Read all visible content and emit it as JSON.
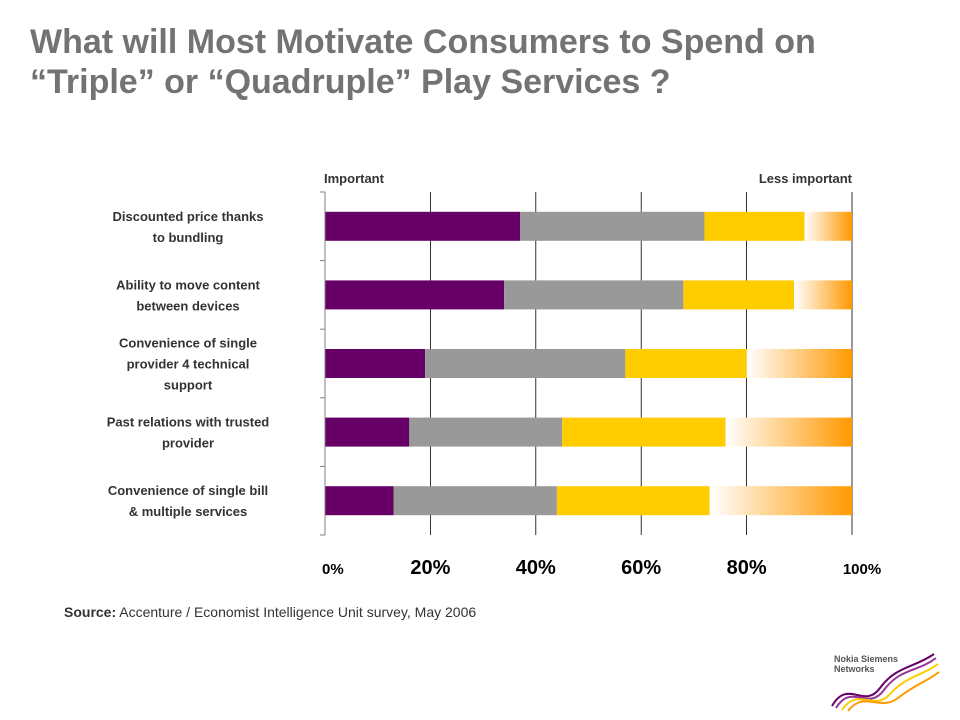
{
  "title": {
    "line1": "What will Most Motivate Consumers to Spend on",
    "line2": "“Triple” or “Quadruple” Play Services ?"
  },
  "source": {
    "label": "Source:",
    "text": " Accenture / Economist Intelligence Unit survey, May 2006"
  },
  "logo": {
    "text_line1": "Nokia Siemens",
    "text_line2": "Networks"
  },
  "colors": {
    "purple": "#660066",
    "gray": "#999999",
    "yellow": "#ffcc00",
    "orange": "#ff9900",
    "axis": "#808080",
    "grid": "#000000",
    "text": "#333333",
    "title": "#737373"
  },
  "chart_data": {
    "type": "bar",
    "orientation": "horizontal",
    "stacked": true,
    "top_labels": {
      "left": "Important",
      "right": "Less important"
    },
    "categories": [
      [
        "Discounted price thanks",
        "to bundling"
      ],
      [
        "Ability to move content",
        "between devices"
      ],
      [
        "Convenience of single",
        "provider 4 technical",
        "support"
      ],
      [
        "Past relations with trusted",
        "provider"
      ],
      [
        "Convenience of single bill",
        "& multiple services"
      ]
    ],
    "series": [
      {
        "color": "#660066",
        "values": [
          37,
          34,
          19,
          16,
          13
        ]
      },
      {
        "color": "#999999",
        "values": [
          35,
          34,
          38,
          29,
          31
        ]
      },
      {
        "color": "#ffcc00",
        "values": [
          19,
          21,
          23,
          31,
          29
        ]
      },
      {
        "color": "gradient-orange",
        "values": [
          9,
          11,
          20,
          24,
          27
        ]
      }
    ],
    "xlim": [
      0,
      100
    ],
    "xticks": [
      "0%",
      "20%",
      "40%",
      "60%",
      "80%",
      "100%"
    ],
    "grid": "vertical"
  }
}
